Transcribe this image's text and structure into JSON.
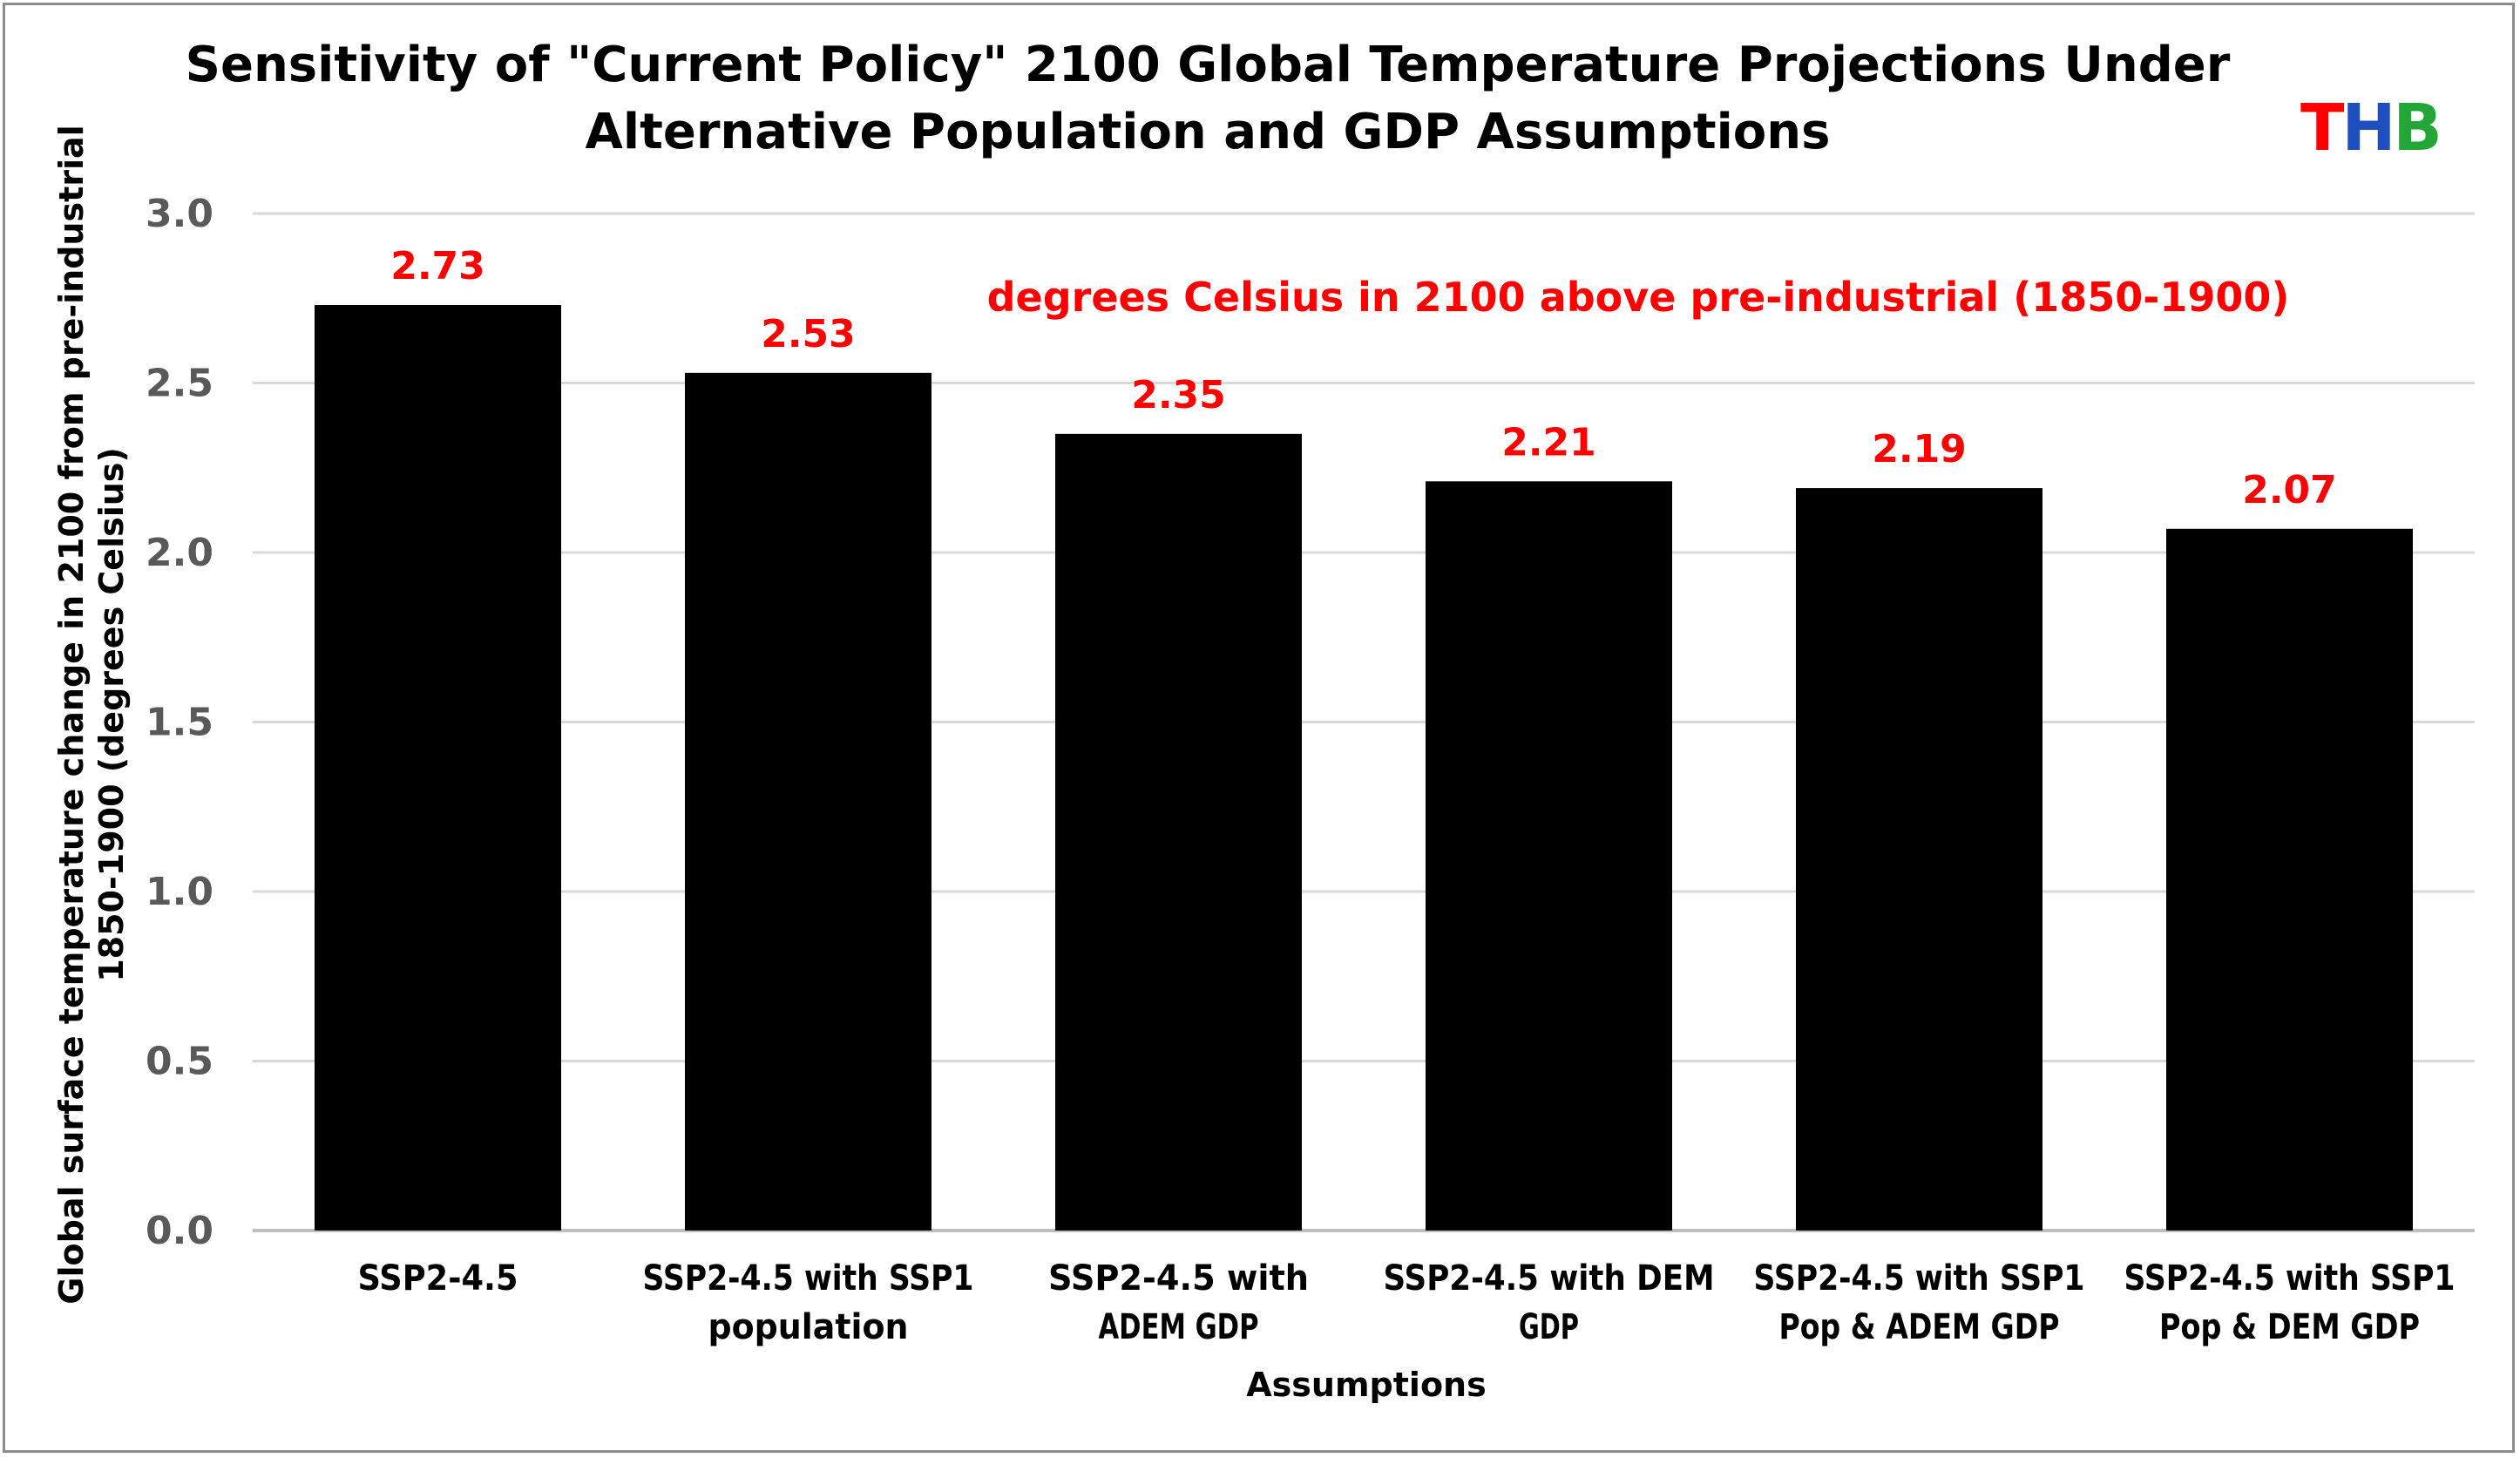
{
  "chart_data": {
    "type": "bar",
    "title_lines": [
      "Sensitivity of \"Current Policy\" 2100 Global Temperature Projections Under",
      "Alternative Population and GDP Assumptions"
    ],
    "categories": [
      [
        "SSP2-4.5"
      ],
      [
        "SSP2-4.5 with SSP1",
        "population"
      ],
      [
        "SSP2-4.5 with",
        "ADEM GDP"
      ],
      [
        "SSP2-4.5 with DEM",
        "GDP"
      ],
      [
        "SSP2-4.5 with SSP1",
        "Pop & ADEM GDP"
      ],
      [
        "SSP2-4.5 with SSP1",
        "Pop & DEM GDP"
      ]
    ],
    "values": [
      2.73,
      2.53,
      2.35,
      2.21,
      2.19,
      2.07
    ],
    "data_labels": [
      "2.73",
      "2.53",
      "2.35",
      "2.21",
      "2.19",
      "2.07"
    ],
    "xlabel": "Assumptions",
    "ylabel_lines": [
      "Global surface temperature change in 2100 from pre-industrial",
      "1850-1900  (degrees Celsius)"
    ],
    "ylim": [
      0,
      3.0
    ],
    "yticks": [
      "0.0",
      "0.5",
      "1.0",
      "1.5",
      "2.0",
      "2.5",
      "3.0"
    ],
    "grid": true,
    "annotation": "degrees Celsius in 2100 above pre-industrial (1850-1900)",
    "colors": {
      "bar": "#000000",
      "data_label": "#ff0000",
      "grid": "#d9d9d9",
      "axis": "#bfbfbf",
      "tick_label": "#595959"
    }
  },
  "logo": {
    "letters": [
      {
        "char": "T",
        "color": "#ff0000"
      },
      {
        "char": "H",
        "color": "#1f4fbf"
      },
      {
        "char": "B",
        "color": "#22a637"
      }
    ]
  }
}
